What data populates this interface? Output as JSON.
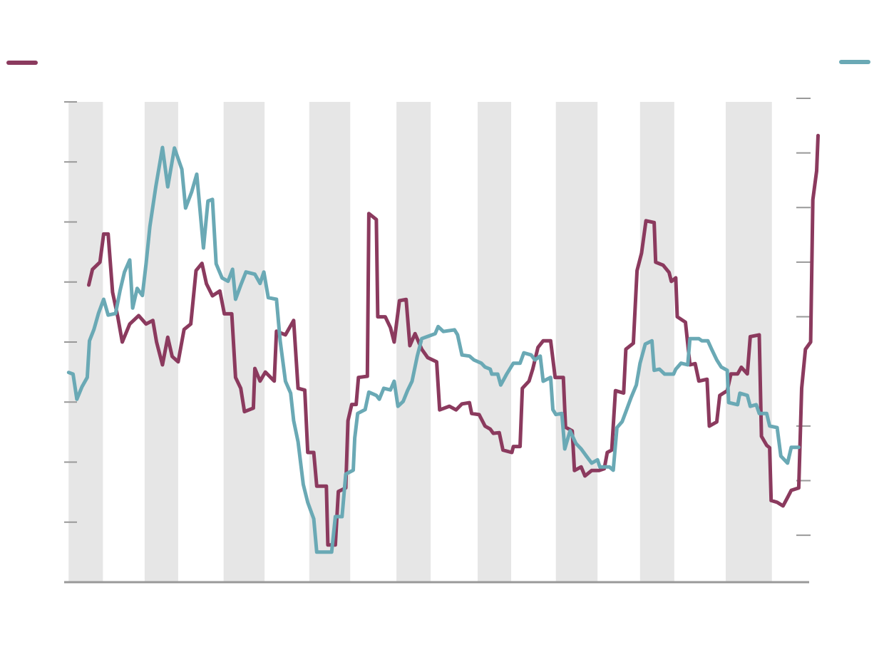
{
  "chart_data": {
    "type": "line",
    "xlim": [
      0,
      100
    ],
    "ylim": [
      0,
      8
    ],
    "yticks": [
      1,
      2,
      3,
      4,
      5,
      6,
      7,
      8
    ],
    "y2lim": [
      0.14,
      9
    ],
    "y2ticks": [
      1,
      2,
      3,
      5,
      6,
      7,
      8,
      9
    ],
    "band_color": "#e6e6e6",
    "bands": [
      [
        0.6,
        5.2
      ],
      [
        10.8,
        15.3
      ],
      [
        21.4,
        26.9
      ],
      [
        32.9,
        38.4
      ],
      [
        44.6,
        49.2
      ],
      [
        55.5,
        60.0
      ],
      [
        66.0,
        71.6
      ],
      [
        77.3,
        81.9
      ],
      [
        88.8,
        95.0
      ]
    ],
    "series": [
      {
        "color": "#8b3a5e",
        "axis": "y",
        "x": [
          3.3,
          3.8,
          4.8,
          5.3,
          5.9,
          6.5,
          7.2,
          7.8,
          8.8,
          10.0,
          11.0,
          11.9,
          12.4,
          13.2,
          13.9,
          14.5,
          15.3,
          16.1,
          17.0,
          17.7,
          18.5,
          19.1,
          19.9,
          20.9,
          21.5,
          22.5,
          23.0,
          23.7,
          24.2,
          25.4,
          25.6,
          26.3,
          27.0,
          28.2,
          28.5,
          29.7,
          30.8,
          31.4,
          32.3,
          32.7,
          33.5,
          33.9,
          35.2,
          35.4,
          36.4,
          36.8,
          37.8,
          38.1,
          38.6,
          39.2,
          39.5,
          40.7,
          40.9,
          41.9,
          42.1,
          43.1,
          43.8,
          44.3,
          45.0,
          45.9,
          46.4,
          47.1,
          48.0,
          48.8,
          50.0,
          50.4,
          51.7,
          52.6,
          53.4,
          54.4,
          54.7,
          55.7,
          56.5,
          57.2,
          57.6,
          58.4,
          58.9,
          60.1,
          60.3,
          61.2,
          61.5,
          62.4,
          62.9,
          63.6,
          64.3,
          65.3,
          65.9,
          67.0,
          67.3,
          68.2,
          68.5,
          69.4,
          69.9,
          70.8,
          71.8,
          72.5,
          72.9,
          73.5,
          74.0,
          75.1,
          75.4,
          76.4,
          76.9,
          77.5,
          78.1,
          79.2,
          79.4,
          80.4,
          81.2,
          81.5,
          82.1,
          82.3,
          83.4,
          84.0,
          84.7,
          85.2,
          86.3,
          86.6,
          87.6,
          88.0,
          89.0,
          89.5,
          90.4,
          90.9,
          91.7,
          92.1,
          93.3,
          93.6,
          94.3,
          94.7,
          94.9,
          95.7,
          96.5,
          97.1,
          97.6,
          98.6,
          99.0,
          99.5,
          100.2,
          100.5,
          101.0,
          101.2
        ],
        "values": [
          4.95,
          5.21,
          5.33,
          5.8,
          5.8,
          4.83,
          4.42,
          4.0,
          4.3,
          4.44,
          4.3,
          4.36,
          4.0,
          3.62,
          4.08,
          3.76,
          3.67,
          4.21,
          4.3,
          5.19,
          5.31,
          4.97,
          4.77,
          4.85,
          4.47,
          4.47,
          3.41,
          3.23,
          2.84,
          2.9,
          3.56,
          3.35,
          3.5,
          3.35,
          4.18,
          4.12,
          4.36,
          3.23,
          3.2,
          2.16,
          2.16,
          1.6,
          1.6,
          0.62,
          0.62,
          1.51,
          1.57,
          2.69,
          2.96,
          2.96,
          3.41,
          3.43,
          6.14,
          6.04,
          4.42,
          4.42,
          4.24,
          4.0,
          4.69,
          4.71,
          3.94,
          4.14,
          3.88,
          3.74,
          3.67,
          2.87,
          2.93,
          2.87,
          2.97,
          2.99,
          2.81,
          2.79,
          2.6,
          2.55,
          2.48,
          2.49,
          2.2,
          2.16,
          2.26,
          2.26,
          3.23,
          3.35,
          3.55,
          3.91,
          4.02,
          4.02,
          3.41,
          3.41,
          2.58,
          2.52,
          1.86,
          1.92,
          1.77,
          1.86,
          1.86,
          1.89,
          2.16,
          2.2,
          3.19,
          3.15,
          3.88,
          3.98,
          5.19,
          5.48,
          6.02,
          5.99,
          5.33,
          5.28,
          5.16,
          5.01,
          5.07,
          4.42,
          4.33,
          3.62,
          3.64,
          3.35,
          3.38,
          2.6,
          2.67,
          3.11,
          3.19,
          3.47,
          3.47,
          3.58,
          3.47,
          4.09,
          4.12,
          2.43,
          2.28,
          2.24,
          1.36,
          1.33,
          1.27,
          1.41,
          1.53,
          1.57,
          3.23,
          3.88,
          4.0,
          6.37,
          6.85,
          7.44
        ]
      },
      {
        "color": "#6aa9b5",
        "axis": "y2",
        "x": [
          0.6,
          1.2,
          1.7,
          2.4,
          3.1,
          3.4,
          4.0,
          4.6,
          5.3,
          5.9,
          6.9,
          7.5,
          8.1,
          8.8,
          9.2,
          9.8,
          10.5,
          11.0,
          11.5,
          12.3,
          13.2,
          13.9,
          14.8,
          15.8,
          16.3,
          17.1,
          17.8,
          18.7,
          19.3,
          19.9,
          20.4,
          21.2,
          22.0,
          22.6,
          23.0,
          23.7,
          24.4,
          25.6,
          26.3,
          26.8,
          27.4,
          28.5,
          29.0,
          29.7,
          30.4,
          30.8,
          31.4,
          32.1,
          32.7,
          33.5,
          33.9,
          34.9,
          35.9,
          36.4,
          37.3,
          37.8,
          38.8,
          39.0,
          39.4,
          40.4,
          40.9,
          41.9,
          42.3,
          42.9,
          43.8,
          44.3,
          44.8,
          45.5,
          46.1,
          46.7,
          47.4,
          48.0,
          48.8,
          49.8,
          50.2,
          50.9,
          52.4,
          52.8,
          53.4,
          54.4,
          55.0,
          56.0,
          56.5,
          57.2,
          57.4,
          58.2,
          58.6,
          59.4,
          60.3,
          61.2,
          61.7,
          62.7,
          63.2,
          63.9,
          64.3,
          65.3,
          65.6,
          66.0,
          66.8,
          67.2,
          67.9,
          68.7,
          69.4,
          70.1,
          70.8,
          71.6,
          71.9,
          73.2,
          73.7,
          74.2,
          74.9,
          75.4,
          76.1,
          76.8,
          77.3,
          78.0,
          78.9,
          79.2,
          79.9,
          80.6,
          81.8,
          82.1,
          82.8,
          83.7,
          84.0,
          85.2,
          85.6,
          86.4,
          86.9,
          87.6,
          88.2,
          89.0,
          89.2,
          90.4,
          90.7,
          91.7,
          92.1,
          92.9,
          93.3,
          94.3,
          94.7,
          95.7,
          96.2,
          97.1,
          97.6,
          98.6
        ],
        "values": [
          3.98,
          3.95,
          3.49,
          3.72,
          3.89,
          4.56,
          4.77,
          5.06,
          5.32,
          5.03,
          5.06,
          5.48,
          5.82,
          6.04,
          5.16,
          5.52,
          5.39,
          5.97,
          6.65,
          7.38,
          8.1,
          7.38,
          8.09,
          7.7,
          6.99,
          7.28,
          7.61,
          6.26,
          7.12,
          7.15,
          5.97,
          5.71,
          5.65,
          5.87,
          5.32,
          5.58,
          5.82,
          5.78,
          5.61,
          5.82,
          5.35,
          5.32,
          4.56,
          3.82,
          3.6,
          3.1,
          2.71,
          1.93,
          1.6,
          1.3,
          0.69,
          0.69,
          0.69,
          1.34,
          1.34,
          2.12,
          2.19,
          2.78,
          3.23,
          3.3,
          3.62,
          3.56,
          3.49,
          3.69,
          3.66,
          3.82,
          3.36,
          3.45,
          3.65,
          3.82,
          4.28,
          4.6,
          4.64,
          4.69,
          4.82,
          4.73,
          4.76,
          4.67,
          4.3,
          4.28,
          4.21,
          4.15,
          4.08,
          4.04,
          3.95,
          3.95,
          3.75,
          3.95,
          4.15,
          4.15,
          4.34,
          4.3,
          4.21,
          4.28,
          3.82,
          3.89,
          3.3,
          3.21,
          3.23,
          2.58,
          2.91,
          2.68,
          2.58,
          2.45,
          2.32,
          2.38,
          2.25,
          2.25,
          2.19,
          2.97,
          3.08,
          3.26,
          3.52,
          3.75,
          4.15,
          4.5,
          4.56,
          4.02,
          4.04,
          3.95,
          3.95,
          4.04,
          4.15,
          4.12,
          4.6,
          4.6,
          4.56,
          4.56,
          4.41,
          4.21,
          4.08,
          4.02,
          3.43,
          3.39,
          3.6,
          3.56,
          3.36,
          3.39,
          3.23,
          3.23,
          3.0,
          2.97,
          2.45,
          2.32,
          2.61,
          2.61
        ]
      }
    ]
  }
}
